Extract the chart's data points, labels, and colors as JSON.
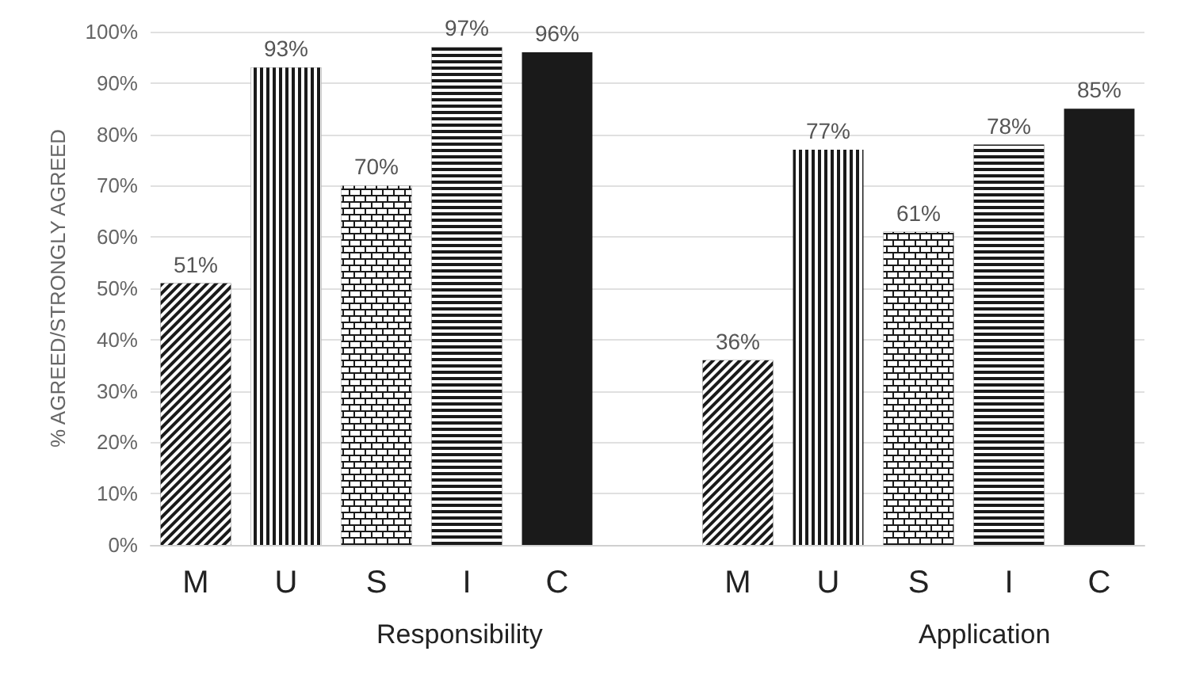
{
  "chart_data": {
    "type": "bar",
    "ylabel": "% AGREED/STRONGLY AGREED",
    "categories": [
      "M",
      "U",
      "S",
      "I",
      "C",
      null,
      "M",
      "U",
      "S",
      "I",
      "C"
    ],
    "values": [
      51,
      93,
      70,
      97,
      96,
      null,
      36,
      77,
      61,
      78,
      85
    ],
    "value_labels": [
      "51%",
      "93%",
      "70%",
      "97%",
      "96%",
      null,
      "36%",
      "77%",
      "61%",
      "78%",
      "85%"
    ],
    "colors": [
      "#1a1a1a",
      "#1a1a1a",
      "#1a1a1a",
      "#1a1a1a",
      "#1a1a1a",
      "#1a1a1a",
      "#1a1a1a",
      "#1a1a1a",
      "#1a1a1a",
      "#1a1a1a",
      "#1a1a1a"
    ],
    "annotations": [
      "Responsibility",
      "Application"
    ],
    "ylim": [
      0,
      100
    ],
    "yticks": [
      {
        "value": 0,
        "label": "0%"
      },
      {
        "value": 10,
        "label": "10%"
      },
      {
        "value": 20,
        "label": "20%"
      },
      {
        "value": 30,
        "label": "30%"
      },
      {
        "value": 40,
        "label": "40%"
      },
      {
        "value": 50,
        "label": "50%"
      },
      {
        "value": 60,
        "label": "60%"
      },
      {
        "value": 70,
        "label": "70%"
      },
      {
        "value": 80,
        "label": "80%"
      },
      {
        "value": 90,
        "label": "90%"
      },
      {
        "value": 100,
        "label": "100%"
      }
    ],
    "grid": "y"
  }
}
